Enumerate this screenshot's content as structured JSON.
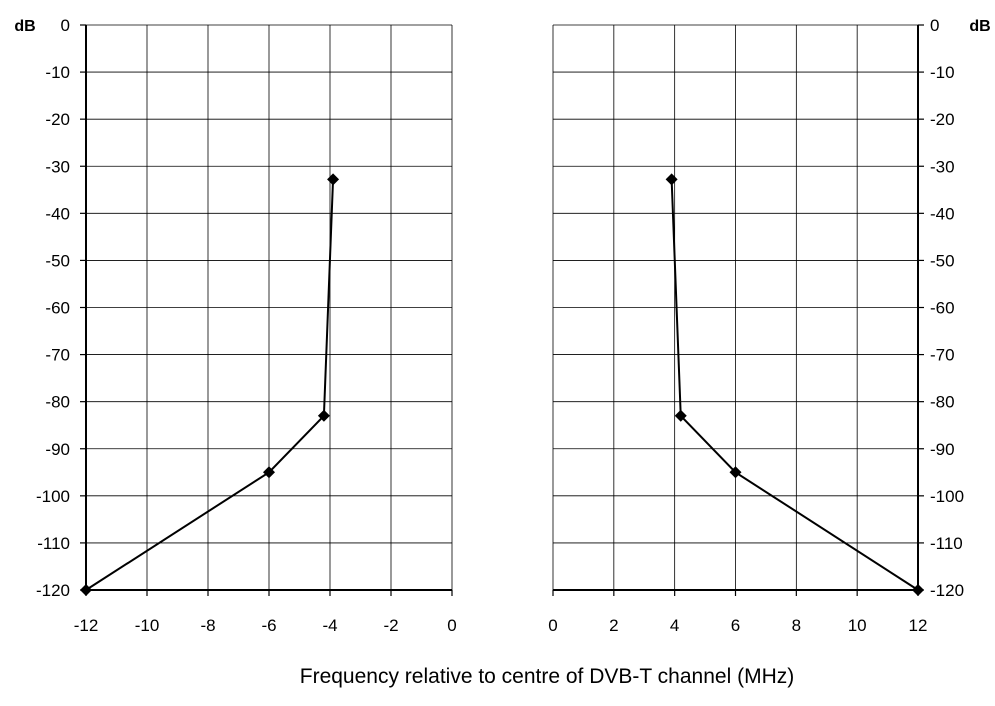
{
  "chart_data": [
    {
      "type": "line",
      "panel": "left",
      "ylabel": "dB",
      "xlim": [
        -12,
        0
      ],
      "ylim": [
        -120,
        0
      ],
      "x_ticks": [
        "-12",
        "-10",
        "-8",
        "-6",
        "-4",
        "-2",
        "0"
      ],
      "y_ticks": [
        "0",
        "-10",
        "-20",
        "-30",
        "-40",
        "-50",
        "-60",
        "-70",
        "-80",
        "-90",
        "-100",
        "-110",
        "-120"
      ],
      "grid": true,
      "marker": "diamond",
      "series": [
        {
          "points": [
            [
              -12,
              -120
            ],
            [
              -6,
              -95
            ],
            [
              -4.2,
              -83
            ],
            [
              -3.9,
              -32.8
            ]
          ]
        }
      ]
    },
    {
      "type": "line",
      "panel": "right",
      "ylabel": "dB",
      "xlim": [
        0,
        12
      ],
      "ylim": [
        -120,
        0
      ],
      "x_ticks": [
        "0",
        "2",
        "4",
        "6",
        "8",
        "10",
        "12"
      ],
      "y_ticks": [
        "0",
        "-10",
        "-20",
        "-30",
        "-40",
        "-50",
        "-60",
        "-70",
        "-80",
        "-90",
        "-100",
        "-110",
        "-120"
      ],
      "grid": true,
      "marker": "diamond",
      "series": [
        {
          "points": [
            [
              3.9,
              -32.8
            ],
            [
              4.2,
              -83
            ],
            [
              6,
              -95
            ],
            [
              12,
              -120
            ]
          ]
        }
      ]
    }
  ],
  "xlabel": "Frequency relative to centre of DVB-T channel (MHz)",
  "colors": {
    "line": "#000000",
    "grid": "#000000",
    "background": "#ffffff"
  }
}
